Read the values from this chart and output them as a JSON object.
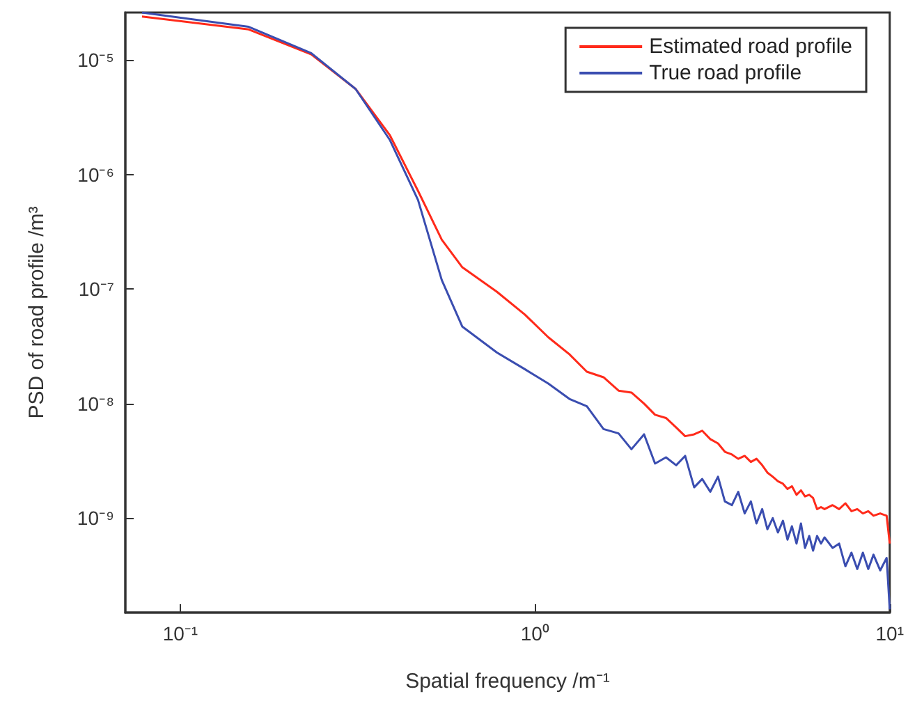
{
  "chart_data": {
    "type": "line",
    "xlabel": "Spatial frequency /m⁻¹",
    "ylabel": "PSD of road profile /m³",
    "log": "xy",
    "grid": false,
    "legend": "top right",
    "marker": "none",
    "line_style": "solid",
    "xlim": [
      0.07,
      10
    ],
    "ylim": [
      1.5e-10,
      2.6e-05
    ],
    "xticks": [
      {
        "value": 0.1,
        "label": "10⁻¹"
      },
      {
        "value": 1,
        "label": "10⁰"
      },
      {
        "value": 10,
        "label": "10¹"
      }
    ],
    "yticks": [
      {
        "value": 1e-09,
        "label": "10⁻⁹"
      },
      {
        "value": 1e-08,
        "label": "10⁻⁸"
      },
      {
        "value": 1e-07,
        "label": "10⁻⁷"
      },
      {
        "value": 1e-06,
        "label": "10⁻⁶"
      },
      {
        "value": 1e-05,
        "label": "10⁻⁵"
      }
    ],
    "series": [
      {
        "name": "Estimated road profile",
        "color": "#ff2a1a",
        "x": [
          0.078,
          0.156,
          0.234,
          0.312,
          0.39,
          0.468,
          0.546,
          0.624,
          0.78,
          0.936,
          1.09,
          1.25,
          1.4,
          1.56,
          1.72,
          1.87,
          2.03,
          2.18,
          2.34,
          2.5,
          2.65,
          2.81,
          2.96,
          3.12,
          3.28,
          3.43,
          3.59,
          3.74,
          3.9,
          4.06,
          4.21,
          4.37,
          4.52,
          4.68,
          4.84,
          5.0,
          5.15,
          5.3,
          5.46,
          5.62,
          5.77,
          5.93,
          6.08,
          6.24,
          6.4,
          6.55,
          6.9,
          7.2,
          7.5,
          7.8,
          8.1,
          8.4,
          8.7,
          9.0,
          9.4,
          9.8,
          10
        ],
        "values": [
          2.4e-05,
          1.85e-05,
          1.12e-05,
          5.6e-06,
          2.2e-06,
          7.2e-07,
          2.7e-07,
          1.55e-07,
          9.5e-08,
          6e-08,
          3.8e-08,
          2.7e-08,
          1.9e-08,
          1.7e-08,
          1.3e-08,
          1.25e-08,
          1e-08,
          8e-09,
          7.5e-09,
          6.2e-09,
          5.2e-09,
          5.4e-09,
          5.8e-09,
          4.9e-09,
          4.5e-09,
          3.8e-09,
          3.6e-09,
          3.3e-09,
          3.5e-09,
          3.1e-09,
          3.3e-09,
          2.9e-09,
          2.5e-09,
          2.3e-09,
          2.1e-09,
          2e-09,
          1.8e-09,
          1.9e-09,
          1.6e-09,
          1.75e-09,
          1.55e-09,
          1.6e-09,
          1.5e-09,
          1.2e-09,
          1.25e-09,
          1.2e-09,
          1.3e-09,
          1.2e-09,
          1.35e-09,
          1.15e-09,
          1.2e-09,
          1.1e-09,
          1.15e-09,
          1.05e-09,
          1.1e-09,
          1.05e-09,
          6e-10
        ]
      },
      {
        "name": "True road profile",
        "color": "#3a4db0",
        "x": [
          0.078,
          0.156,
          0.234,
          0.312,
          0.39,
          0.468,
          0.546,
          0.624,
          0.78,
          0.936,
          1.09,
          1.25,
          1.4,
          1.56,
          1.72,
          1.87,
          2.03,
          2.18,
          2.34,
          2.5,
          2.65,
          2.81,
          2.96,
          3.12,
          3.28,
          3.43,
          3.59,
          3.74,
          3.9,
          4.06,
          4.21,
          4.37,
          4.52,
          4.68,
          4.84,
          5.0,
          5.15,
          5.3,
          5.46,
          5.62,
          5.77,
          5.93,
          6.08,
          6.24,
          6.4,
          6.55,
          6.9,
          7.2,
          7.5,
          7.8,
          8.1,
          8.4,
          8.7,
          9.0,
          9.4,
          9.8,
          10
        ],
        "values": [
          2.6e-05,
          1.95e-05,
          1.15e-05,
          5.6e-06,
          2e-06,
          6e-07,
          1.2e-07,
          4.7e-08,
          2.8e-08,
          2e-08,
          1.5e-08,
          1.1e-08,
          9.5e-09,
          6e-09,
          5.5e-09,
          4e-09,
          5.4e-09,
          3e-09,
          3.4e-09,
          2.9e-09,
          3.5e-09,
          1.86e-09,
          2.2e-09,
          1.7e-09,
          2.3e-09,
          1.4e-09,
          1.3e-09,
          1.7e-09,
          1.1e-09,
          1.4e-09,
          9e-10,
          1.2e-09,
          8e-10,
          1e-09,
          7.5e-10,
          9.5e-10,
          6.5e-10,
          8.5e-10,
          6e-10,
          9e-10,
          5.5e-10,
          7e-10,
          5.2e-10,
          7e-10,
          6e-10,
          6.8e-10,
          5.5e-10,
          6e-10,
          3.8e-10,
          5e-10,
          3.6e-10,
          5e-10,
          3.6e-10,
          4.8e-10,
          3.5e-10,
          4.5e-10,
          1.6e-10
        ]
      }
    ]
  }
}
